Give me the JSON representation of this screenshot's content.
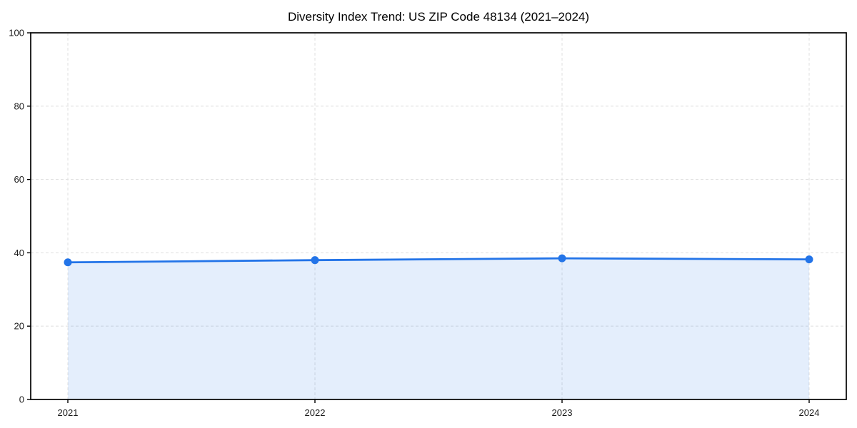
{
  "chart_data": {
    "type": "area",
    "title": "Diversity Index Trend: US ZIP Code 48134 (2021–2024)",
    "categories": [
      "2021",
      "2022",
      "2023",
      "2024"
    ],
    "values": [
      37.4,
      38.0,
      38.5,
      38.2
    ],
    "series_name": "Diversity Index",
    "xlabel": "",
    "ylabel": "",
    "ylim": [
      0,
      100
    ],
    "yticks": [
      0,
      20,
      40,
      60,
      80,
      100
    ],
    "grid": true,
    "grid_style": "dashed",
    "legend": "none",
    "colors": {
      "line": "#2374e8",
      "marker": "#2374e8",
      "fill": "#2374e8",
      "fill_opacity": 0.12,
      "grid": "#e2e2e2",
      "spine": "#000000",
      "tick_label": "#1a1a1a",
      "background": "#ffffff"
    }
  }
}
